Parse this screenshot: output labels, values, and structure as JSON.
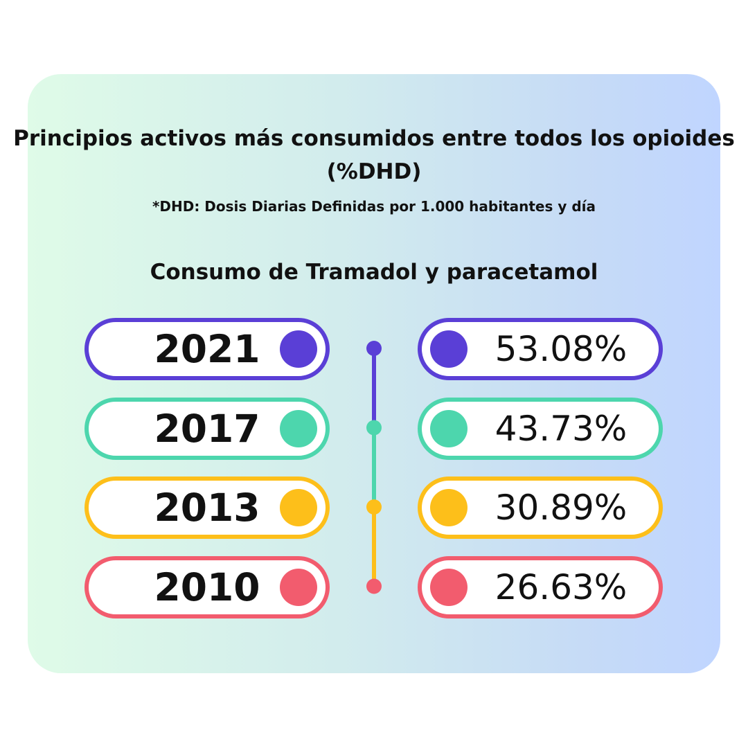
{
  "title": "Principios activos más consumidos entre todos los opioides (%DHD)",
  "note": "*DHD: Dosis Diarias Definidas por 1.000 habitantes y día",
  "subtitle": "Consumo de Tramadol y paracetamol",
  "colors": {
    "purple": "#5a3fd6",
    "teal": "#4dd6ad",
    "yellow": "#fdbf1a",
    "red": "#f25c6e"
  },
  "chart_data": {
    "type": "table",
    "title": "Consumo de Tramadol y paracetamol",
    "unit": "%",
    "rows": [
      {
        "year": "2021",
        "value": 53.08,
        "label": "53.08%",
        "color": "#5a3fd6"
      },
      {
        "year": "2017",
        "value": 43.73,
        "label": "43.73%",
        "color": "#4dd6ad"
      },
      {
        "year": "2013",
        "value": 30.89,
        "label": "30.89%",
        "color": "#fdbf1a"
      },
      {
        "year": "2010",
        "value": 26.63,
        "label": "26.63%",
        "color": "#f25c6e"
      }
    ]
  }
}
